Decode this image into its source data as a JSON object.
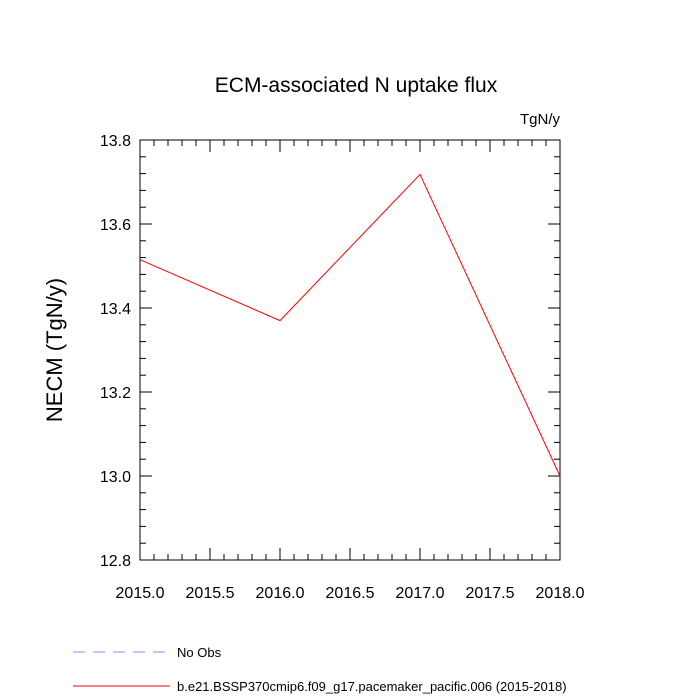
{
  "chart_data": {
    "type": "line",
    "title": "ECM-associated N uptake flux",
    "units_label": "TgN/y",
    "xlabel": "",
    "ylabel": "NECM  (TgN/y)",
    "xlim": [
      2015.0,
      2018.0
    ],
    "ylim": [
      12.8,
      13.8
    ],
    "x_ticks": [
      "2015.0",
      "2015.5",
      "2016.0",
      "2016.5",
      "2017.0",
      "2017.5",
      "2018.0"
    ],
    "y_ticks": [
      "12.8",
      "13.0",
      "13.2",
      "13.4",
      "13.6",
      "13.8"
    ],
    "grid": false,
    "legend_position": "bottom-left",
    "series": [
      {
        "name": "No Obs",
        "color": "#8888ff",
        "dash": "dashed",
        "x": [],
        "y": []
      },
      {
        "name": "b.e21.BSSP370cmip6.f09_g17.pacemaker_pacific.006 (2015-2018)",
        "color": "#ff0000",
        "dash": "solid",
        "x": [
          2015.0,
          2016.0,
          2017.0,
          2018.0
        ],
        "y": [
          13.515,
          13.37,
          13.718,
          13.0
        ]
      }
    ]
  }
}
